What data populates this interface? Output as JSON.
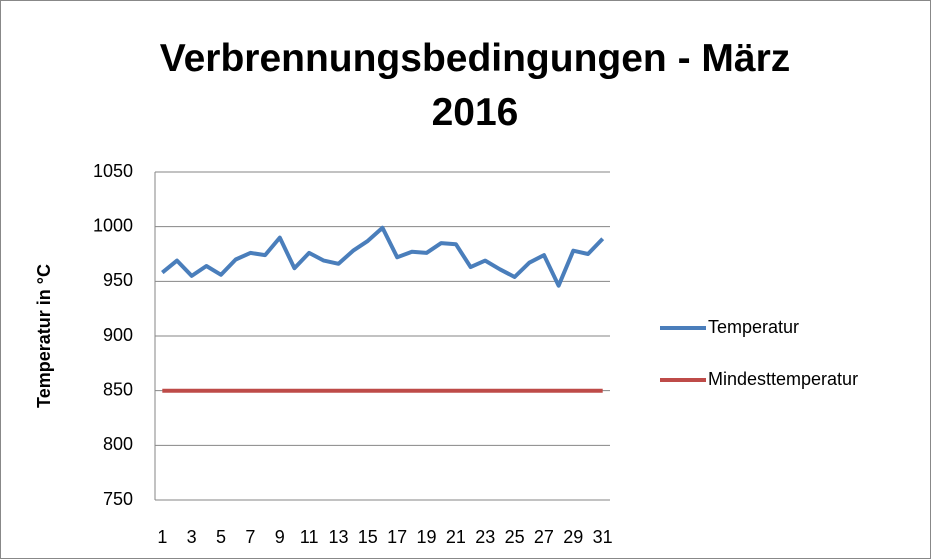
{
  "chart_data": {
    "type": "line",
    "title": "Verbrennungsbedingungen - März 2016",
    "y_label": "Temperatur in °C",
    "categories": [
      1,
      null,
      3,
      null,
      5,
      null,
      7,
      null,
      9,
      null,
      11,
      null,
      13,
      null,
      15,
      null,
      17,
      null,
      19,
      null,
      21,
      null,
      23,
      null,
      25,
      null,
      27,
      null,
      29,
      null,
      31
    ],
    "series": [
      {
        "name": "Temperatur",
        "color": "#4a7ebb",
        "values": [
          958,
          969,
          955,
          964,
          956,
          970,
          976,
          974,
          990,
          962,
          976,
          969,
          966,
          978,
          987,
          999,
          972,
          977,
          976,
          985,
          984,
          963,
          969,
          961,
          954,
          967,
          974,
          946,
          978,
          975,
          989
        ]
      },
      {
        "name": "Mindesttemperatur",
        "color": "#be4b48",
        "values": [
          850,
          850,
          850,
          850,
          850,
          850,
          850,
          850,
          850,
          850,
          850,
          850,
          850,
          850,
          850,
          850,
          850,
          850,
          850,
          850,
          850,
          850,
          850,
          850,
          850,
          850,
          850,
          850,
          850,
          850,
          850
        ]
      }
    ],
    "ylim": [
      750,
      1050
    ],
    "yticks": [
      750,
      800,
      850,
      900,
      950,
      1000,
      1050
    ],
    "grid": true,
    "legend": "right"
  }
}
